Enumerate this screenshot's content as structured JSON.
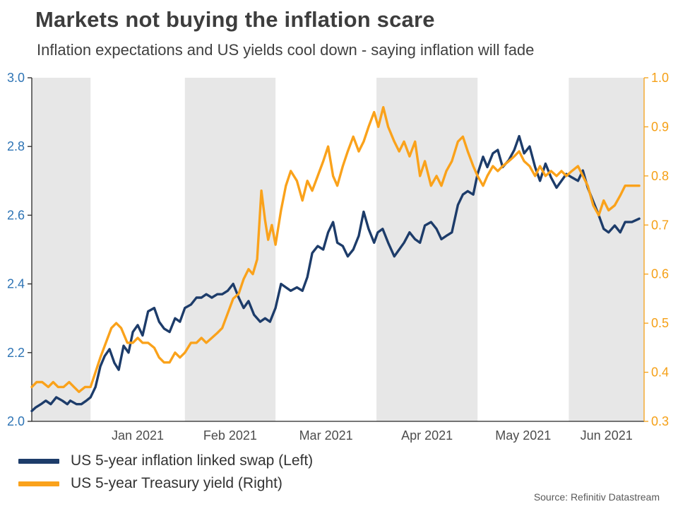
{
  "chart_data": {
    "type": "line",
    "title": "Markets not buying the inflation scare",
    "subtitle": "Inflation expectations and US yields cool down - saying inflation will fade",
    "source": "Source: Refinitiv Datastream",
    "band_color": "#e7e7e7",
    "axis_line_color": "#262626",
    "x_label_color": "#4d4d4d",
    "left_axis": {
      "min": 2.0,
      "max": 3.0,
      "ticks": [
        3.0,
        2.8,
        2.6,
        2.4,
        2.2,
        2.0
      ],
      "color": "#2e74b5"
    },
    "right_axis": {
      "min": 0.3,
      "max": 1.0,
      "ticks": [
        1.0,
        0.9,
        0.8,
        0.7,
        0.6,
        0.5,
        0.4,
        0.3
      ],
      "color": "#f5a017"
    },
    "month_boundaries": [
      0,
      0.096,
      0.25,
      0.398,
      0.563,
      0.728,
      0.877,
      1.0
    ],
    "months": [
      {
        "label": "",
        "shaded": true
      },
      {
        "label": "Jan 2021",
        "shaded": false
      },
      {
        "label": "Feb 2021",
        "shaded": true
      },
      {
        "label": "Mar 2021",
        "shaded": false
      },
      {
        "label": "Apr 2021",
        "shaded": true
      },
      {
        "label": "May 2021",
        "shaded": false
      },
      {
        "label": "Jun 2021",
        "shaded": true
      }
    ],
    "series": [
      {
        "name": "US 5-year inflation linked swap (Left)",
        "axis": "left",
        "color": "#1d3c6a",
        "points": [
          [
            0.0,
            2.03
          ],
          [
            0.006,
            2.04
          ],
          [
            0.015,
            2.05
          ],
          [
            0.023,
            2.06
          ],
          [
            0.031,
            2.05
          ],
          [
            0.04,
            2.07
          ],
          [
            0.05,
            2.06
          ],
          [
            0.058,
            2.05
          ],
          [
            0.063,
            2.06
          ],
          [
            0.073,
            2.05
          ],
          [
            0.081,
            2.05
          ],
          [
            0.089,
            2.06
          ],
          [
            0.096,
            2.07
          ],
          [
            0.104,
            2.1
          ],
          [
            0.112,
            2.16
          ],
          [
            0.119,
            2.19
          ],
          [
            0.127,
            2.21
          ],
          [
            0.135,
            2.17
          ],
          [
            0.142,
            2.15
          ],
          [
            0.15,
            2.22
          ],
          [
            0.158,
            2.2
          ],
          [
            0.165,
            2.26
          ],
          [
            0.173,
            2.28
          ],
          [
            0.181,
            2.25
          ],
          [
            0.19,
            2.32
          ],
          [
            0.2,
            2.33
          ],
          [
            0.208,
            2.29
          ],
          [
            0.216,
            2.27
          ],
          [
            0.225,
            2.26
          ],
          [
            0.234,
            2.3
          ],
          [
            0.242,
            2.29
          ],
          [
            0.25,
            2.33
          ],
          [
            0.26,
            2.34
          ],
          [
            0.269,
            2.36
          ],
          [
            0.277,
            2.36
          ],
          [
            0.285,
            2.37
          ],
          [
            0.294,
            2.36
          ],
          [
            0.303,
            2.37
          ],
          [
            0.311,
            2.37
          ],
          [
            0.32,
            2.38
          ],
          [
            0.329,
            2.4
          ],
          [
            0.338,
            2.36
          ],
          [
            0.346,
            2.33
          ],
          [
            0.354,
            2.35
          ],
          [
            0.363,
            2.31
          ],
          [
            0.373,
            2.29
          ],
          [
            0.381,
            2.3
          ],
          [
            0.389,
            2.29
          ],
          [
            0.398,
            2.33
          ],
          [
            0.407,
            2.4
          ],
          [
            0.415,
            2.39
          ],
          [
            0.423,
            2.38
          ],
          [
            0.433,
            2.39
          ],
          [
            0.442,
            2.38
          ],
          [
            0.45,
            2.42
          ],
          [
            0.458,
            2.49
          ],
          [
            0.467,
            2.51
          ],
          [
            0.476,
            2.5
          ],
          [
            0.484,
            2.55
          ],
          [
            0.492,
            2.58
          ],
          [
            0.499,
            2.52
          ],
          [
            0.508,
            2.51
          ],
          [
            0.516,
            2.48
          ],
          [
            0.525,
            2.5
          ],
          [
            0.534,
            2.54
          ],
          [
            0.542,
            2.61
          ],
          [
            0.55,
            2.56
          ],
          [
            0.559,
            2.52
          ],
          [
            0.565,
            2.55
          ],
          [
            0.573,
            2.56
          ],
          [
            0.582,
            2.52
          ],
          [
            0.592,
            2.48
          ],
          [
            0.6,
            2.5
          ],
          [
            0.608,
            2.52
          ],
          [
            0.617,
            2.55
          ],
          [
            0.626,
            2.53
          ],
          [
            0.634,
            2.52
          ],
          [
            0.642,
            2.57
          ],
          [
            0.652,
            2.58
          ],
          [
            0.661,
            2.56
          ],
          [
            0.669,
            2.53
          ],
          [
            0.677,
            2.54
          ],
          [
            0.686,
            2.55
          ],
          [
            0.696,
            2.63
          ],
          [
            0.704,
            2.66
          ],
          [
            0.712,
            2.67
          ],
          [
            0.721,
            2.66
          ],
          [
            0.728,
            2.72
          ],
          [
            0.737,
            2.77
          ],
          [
            0.744,
            2.74
          ],
          [
            0.753,
            2.78
          ],
          [
            0.761,
            2.79
          ],
          [
            0.769,
            2.74
          ],
          [
            0.779,
            2.76
          ],
          [
            0.788,
            2.79
          ],
          [
            0.796,
            2.83
          ],
          [
            0.804,
            2.78
          ],
          [
            0.813,
            2.8
          ],
          [
            0.822,
            2.74
          ],
          [
            0.83,
            2.7
          ],
          [
            0.839,
            2.75
          ],
          [
            0.848,
            2.71
          ],
          [
            0.857,
            2.68
          ],
          [
            0.865,
            2.7
          ],
          [
            0.873,
            2.72
          ],
          [
            0.882,
            2.71
          ],
          [
            0.892,
            2.7
          ],
          [
            0.9,
            2.73
          ],
          [
            0.908,
            2.68
          ],
          [
            0.917,
            2.64
          ],
          [
            0.926,
            2.6
          ],
          [
            0.934,
            2.56
          ],
          [
            0.942,
            2.55
          ],
          [
            0.952,
            2.57
          ],
          [
            0.961,
            2.55
          ],
          [
            0.969,
            2.58
          ],
          [
            0.98,
            2.58
          ],
          [
            0.992,
            2.59
          ]
        ]
      },
      {
        "name": "US 5-year Treasury yield (Right)",
        "axis": "right",
        "color": "#faa21b",
        "points": [
          [
            0.0,
            0.37
          ],
          [
            0.008,
            0.38
          ],
          [
            0.017,
            0.38
          ],
          [
            0.027,
            0.37
          ],
          [
            0.035,
            0.38
          ],
          [
            0.043,
            0.37
          ],
          [
            0.052,
            0.37
          ],
          [
            0.061,
            0.38
          ],
          [
            0.069,
            0.37
          ],
          [
            0.077,
            0.36
          ],
          [
            0.087,
            0.37
          ],
          [
            0.096,
            0.37
          ],
          [
            0.104,
            0.4
          ],
          [
            0.112,
            0.43
          ],
          [
            0.121,
            0.46
          ],
          [
            0.13,
            0.49
          ],
          [
            0.138,
            0.5
          ],
          [
            0.146,
            0.49
          ],
          [
            0.156,
            0.46
          ],
          [
            0.165,
            0.46
          ],
          [
            0.173,
            0.47
          ],
          [
            0.181,
            0.46
          ],
          [
            0.19,
            0.46
          ],
          [
            0.2,
            0.45
          ],
          [
            0.208,
            0.43
          ],
          [
            0.216,
            0.42
          ],
          [
            0.225,
            0.42
          ],
          [
            0.234,
            0.44
          ],
          [
            0.242,
            0.43
          ],
          [
            0.25,
            0.44
          ],
          [
            0.26,
            0.46
          ],
          [
            0.269,
            0.46
          ],
          [
            0.277,
            0.47
          ],
          [
            0.285,
            0.46
          ],
          [
            0.294,
            0.47
          ],
          [
            0.303,
            0.48
          ],
          [
            0.311,
            0.49
          ],
          [
            0.32,
            0.52
          ],
          [
            0.329,
            0.55
          ],
          [
            0.338,
            0.56
          ],
          [
            0.346,
            0.59
          ],
          [
            0.354,
            0.61
          ],
          [
            0.361,
            0.6
          ],
          [
            0.368,
            0.63
          ],
          [
            0.375,
            0.77
          ],
          [
            0.381,
            0.71
          ],
          [
            0.386,
            0.67
          ],
          [
            0.392,
            0.7
          ],
          [
            0.398,
            0.66
          ],
          [
            0.407,
            0.73
          ],
          [
            0.415,
            0.78
          ],
          [
            0.423,
            0.81
          ],
          [
            0.433,
            0.79
          ],
          [
            0.442,
            0.75
          ],
          [
            0.45,
            0.79
          ],
          [
            0.458,
            0.77
          ],
          [
            0.467,
            0.8
          ],
          [
            0.476,
            0.83
          ],
          [
            0.484,
            0.86
          ],
          [
            0.492,
            0.8
          ],
          [
            0.499,
            0.78
          ],
          [
            0.508,
            0.82
          ],
          [
            0.516,
            0.85
          ],
          [
            0.525,
            0.88
          ],
          [
            0.534,
            0.85
          ],
          [
            0.542,
            0.87
          ],
          [
            0.55,
            0.9
          ],
          [
            0.559,
            0.93
          ],
          [
            0.566,
            0.9
          ],
          [
            0.574,
            0.94
          ],
          [
            0.582,
            0.9
          ],
          [
            0.592,
            0.87
          ],
          [
            0.6,
            0.85
          ],
          [
            0.608,
            0.87
          ],
          [
            0.617,
            0.84
          ],
          [
            0.626,
            0.87
          ],
          [
            0.634,
            0.8
          ],
          [
            0.642,
            0.83
          ],
          [
            0.652,
            0.78
          ],
          [
            0.661,
            0.8
          ],
          [
            0.669,
            0.78
          ],
          [
            0.677,
            0.81
          ],
          [
            0.686,
            0.83
          ],
          [
            0.696,
            0.87
          ],
          [
            0.704,
            0.88
          ],
          [
            0.712,
            0.85
          ],
          [
            0.721,
            0.82
          ],
          [
            0.728,
            0.8
          ],
          [
            0.737,
            0.78
          ],
          [
            0.744,
            0.8
          ],
          [
            0.753,
            0.82
          ],
          [
            0.761,
            0.81
          ],
          [
            0.769,
            0.82
          ],
          [
            0.779,
            0.83
          ],
          [
            0.788,
            0.84
          ],
          [
            0.796,
            0.85
          ],
          [
            0.804,
            0.83
          ],
          [
            0.813,
            0.82
          ],
          [
            0.822,
            0.8
          ],
          [
            0.83,
            0.82
          ],
          [
            0.839,
            0.8
          ],
          [
            0.848,
            0.81
          ],
          [
            0.857,
            0.8
          ],
          [
            0.865,
            0.81
          ],
          [
            0.873,
            0.8
          ],
          [
            0.882,
            0.81
          ],
          [
            0.892,
            0.82
          ],
          [
            0.9,
            0.8
          ],
          [
            0.908,
            0.78
          ],
          [
            0.917,
            0.74
          ],
          [
            0.926,
            0.72
          ],
          [
            0.934,
            0.75
          ],
          [
            0.942,
            0.73
          ],
          [
            0.952,
            0.74
          ],
          [
            0.961,
            0.76
          ],
          [
            0.969,
            0.78
          ],
          [
            0.98,
            0.78
          ],
          [
            0.992,
            0.78
          ]
        ]
      }
    ]
  }
}
